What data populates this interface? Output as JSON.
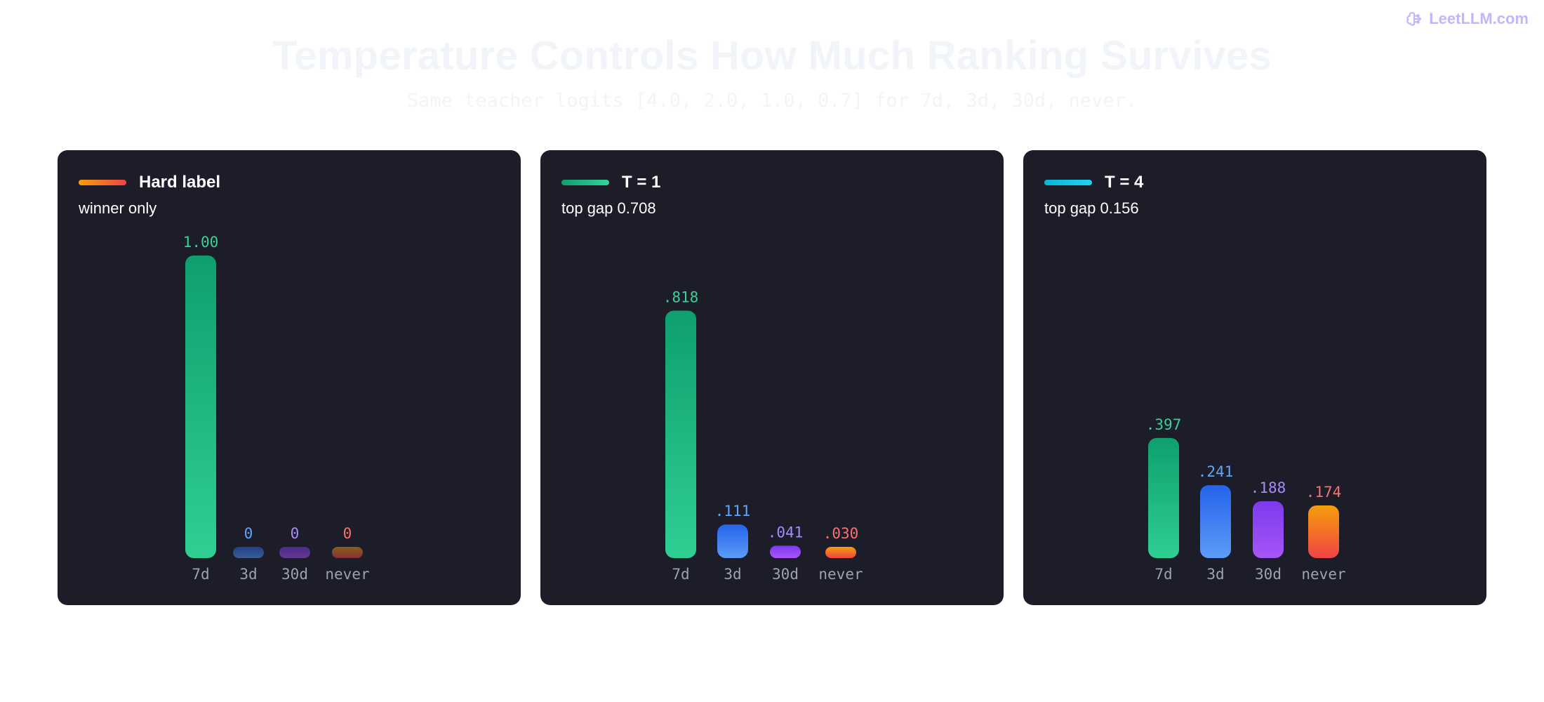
{
  "brand": {
    "text": "LeetLLM.com",
    "icon": "brain-icon",
    "color": "#c4b5fd"
  },
  "header": {
    "title": "Temperature Controls How Much Ranking Survives",
    "subtitle": "Same teacher logits [4.0, 2.0, 1.0, 0.7] for 7d, 3d, 30d, never."
  },
  "colors": {
    "panel_bg": "#1c1d28",
    "tick_label": "#9ca3af",
    "series": [
      {
        "label_color": "#34d399",
        "top": "#0e9f6e",
        "bottom": "#2fcf92"
      },
      {
        "label_color": "#60a5fa",
        "top": "#2563eb",
        "bottom": "#5b9cf6"
      },
      {
        "label_color": "#a78bfa",
        "top": "#7c3aed",
        "bottom": "#a855f7"
      },
      {
        "label_color": "#f87171",
        "top": "#f59e0b",
        "bottom": "#ef4444"
      }
    ]
  },
  "chart_data": [
    {
      "type": "bar",
      "title": "Hard label",
      "subtitle": "winner only",
      "swatch": [
        "#f59e0b",
        "#ef4444"
      ],
      "categories": [
        "7d",
        "3d",
        "30d",
        "never"
      ],
      "values": [
        1.0,
        0,
        0,
        0
      ],
      "value_labels": [
        "1.00",
        "0",
        "0",
        "0"
      ],
      "ylim": [
        0,
        1.0
      ],
      "muted_zero_bars": true
    },
    {
      "type": "bar",
      "title": "T = 1",
      "subtitle": "top gap 0.708",
      "swatch": [
        "#0e9f6e",
        "#34d399"
      ],
      "categories": [
        "7d",
        "3d",
        "30d",
        "never"
      ],
      "values": [
        0.818,
        0.111,
        0.041,
        0.03
      ],
      "value_labels": [
        ".818",
        ".111",
        ".041",
        ".030"
      ],
      "ylim": [
        0,
        1.0
      ]
    },
    {
      "type": "bar",
      "title": "T = 4",
      "subtitle": "top gap 0.156",
      "swatch": [
        "#06b6d4",
        "#22d3ee"
      ],
      "categories": [
        "7d",
        "3d",
        "30d",
        "never"
      ],
      "values": [
        0.397,
        0.241,
        0.188,
        0.174
      ],
      "value_labels": [
        ".397",
        ".241",
        ".188",
        ".174"
      ],
      "ylim": [
        0,
        1.0
      ]
    }
  ]
}
